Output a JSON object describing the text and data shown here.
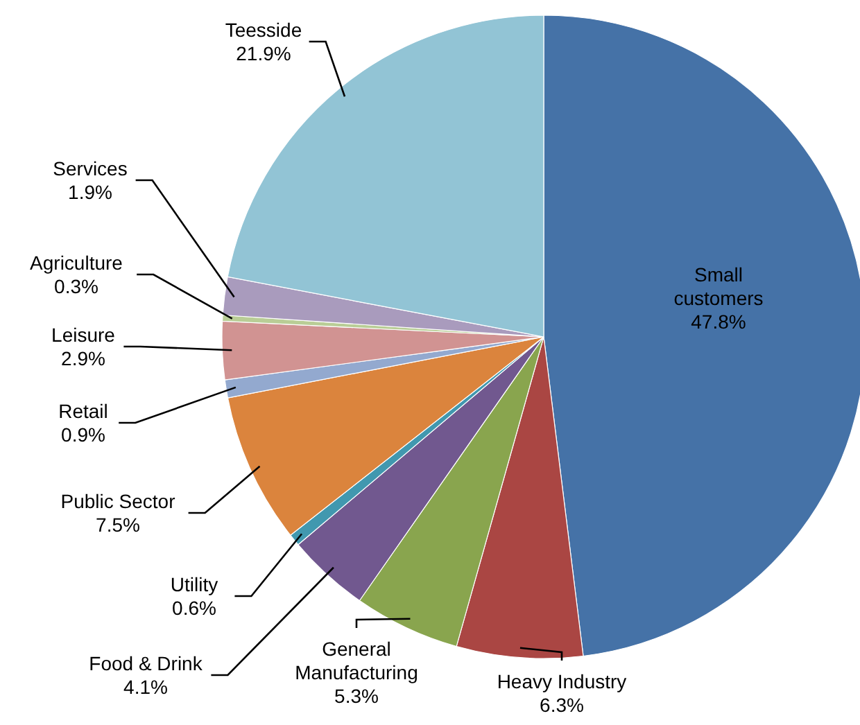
{
  "chart_data": {
    "type": "pie",
    "categories": [
      "Small customers",
      "Heavy Industry",
      "General Manufacturing",
      "Food & Drink",
      "Utility",
      "Public Sector",
      "Retail",
      "Leisure",
      "Agriculture",
      "Services",
      "Teesside"
    ],
    "values": [
      47.8,
      6.3,
      5.3,
      4.1,
      0.6,
      7.5,
      0.9,
      2.9,
      0.3,
      1.9,
      21.9
    ],
    "value_labels": [
      "47.8%",
      "6.3%",
      "5.3%",
      "4.1%",
      "0.6%",
      "7.5%",
      "0.9%",
      "2.9%",
      "0.3%",
      "1.9%",
      "21.9%"
    ],
    "colors": [
      "#4572a7",
      "#aa4643",
      "#89a54e",
      "#71588f",
      "#4198af",
      "#db843d",
      "#93a9cf",
      "#d19392",
      "#b9cd96",
      "#a99bbd",
      "#92c4d5"
    ]
  }
}
